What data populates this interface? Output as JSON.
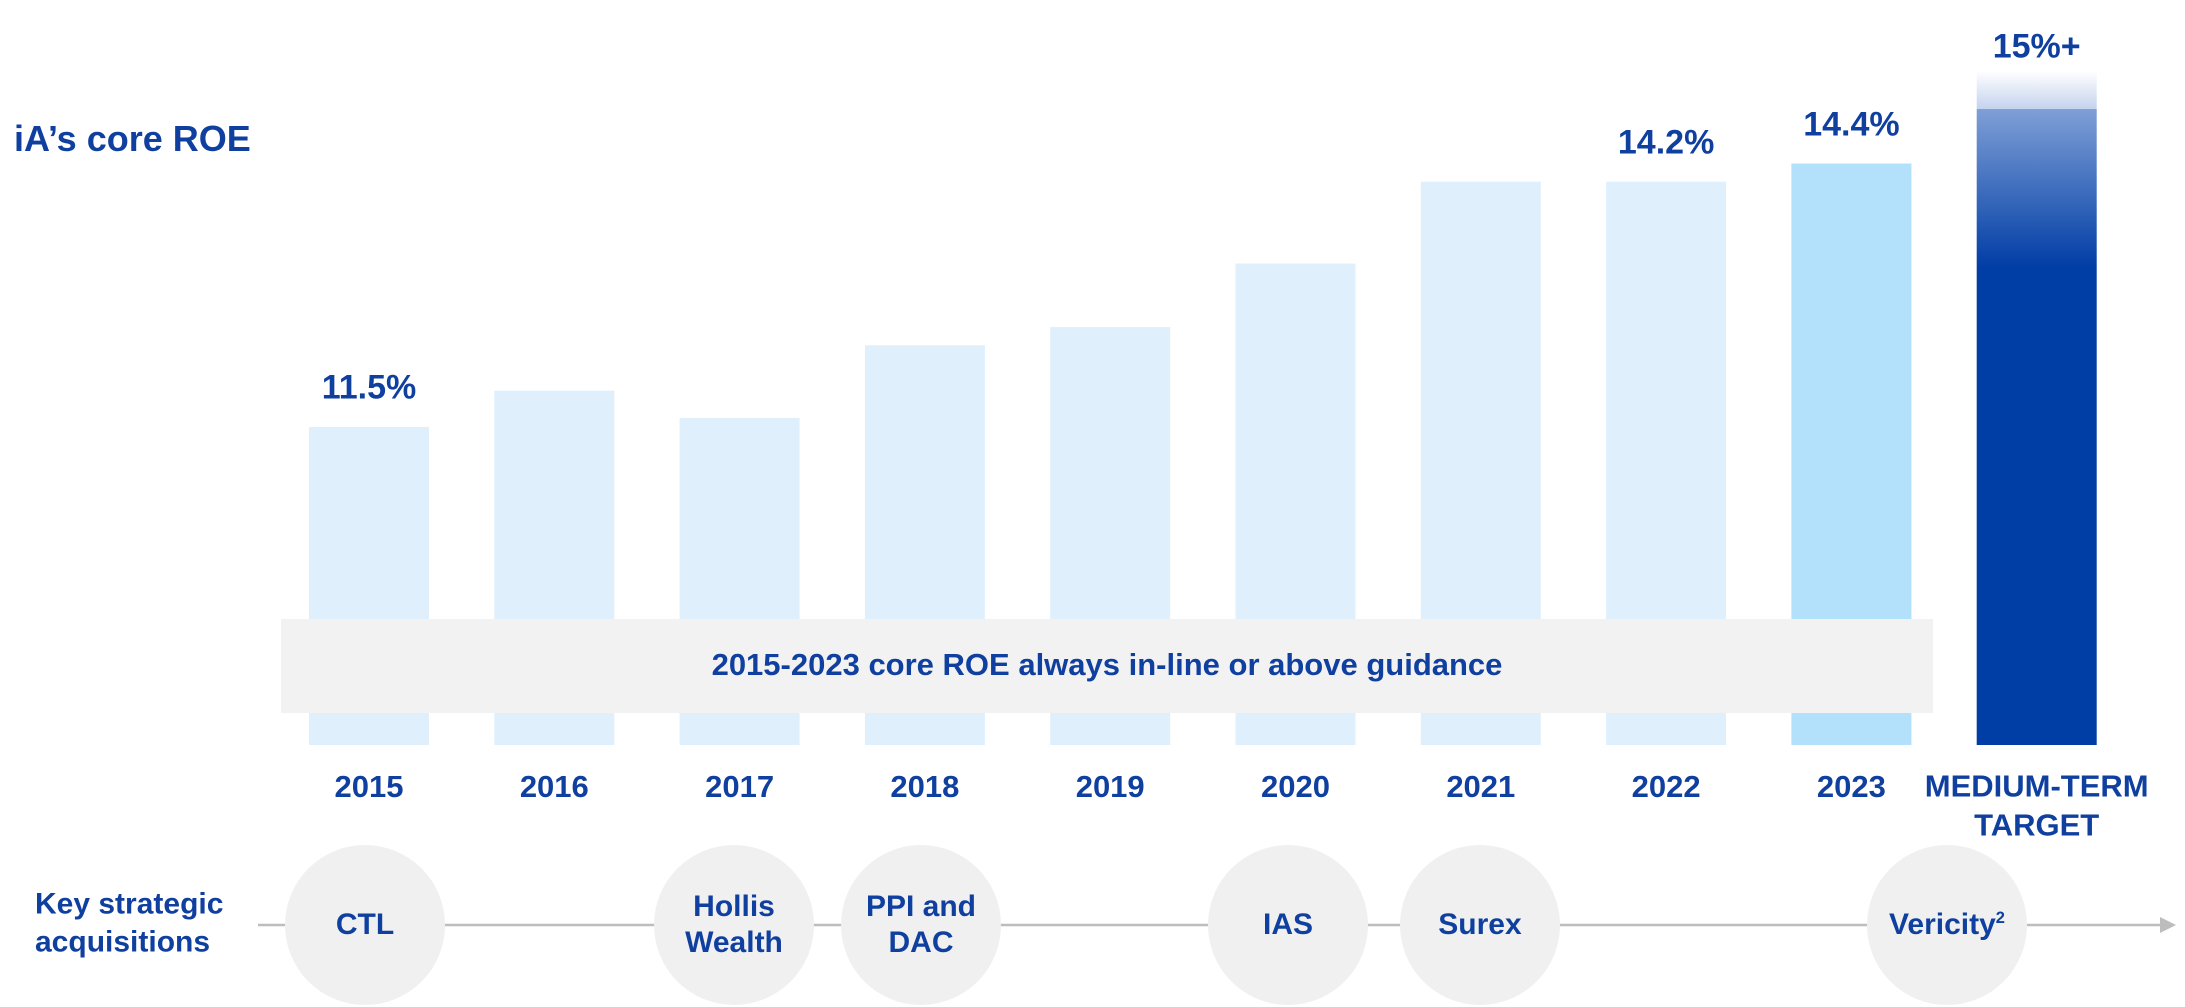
{
  "chart_data": {
    "type": "bar",
    "title": "iA’s core ROE",
    "categories": [
      "2015",
      "2016",
      "2017",
      "2018",
      "2019",
      "2020",
      "2021",
      "2022",
      "2023",
      "MEDIUM-TERM TARGET"
    ],
    "values": [
      11.5,
      11.9,
      11.6,
      12.4,
      12.6,
      13.3,
      14.2,
      14.2,
      14.4,
      15
    ],
    "value_labels": [
      "11.5%",
      null,
      null,
      null,
      null,
      null,
      null,
      "14.2%",
      "14.4%",
      "15%+"
    ],
    "colors": [
      "#dff0fc",
      "#dff0fc",
      "#dff0fc",
      "#dff0fc",
      "#dff0fc",
      "#dff0fc",
      "#dff0fc",
      "#dff0fc",
      "#b3e0fb",
      "#003da5"
    ],
    "ylim": [
      8,
      16.2
    ],
    "banner": "2015-2023 core ROE always in-line or above guidance",
    "acquisitions_label": "Key strategic acquisitions",
    "acquisitions": [
      {
        "name": "CTL"
      },
      {
        "name": "Hollis Wealth"
      },
      {
        "name": "PPI and DAC"
      },
      {
        "name": "IAS"
      },
      {
        "name": "Surex"
      },
      {
        "name": "Vericity",
        "footnote": "2"
      }
    ]
  }
}
